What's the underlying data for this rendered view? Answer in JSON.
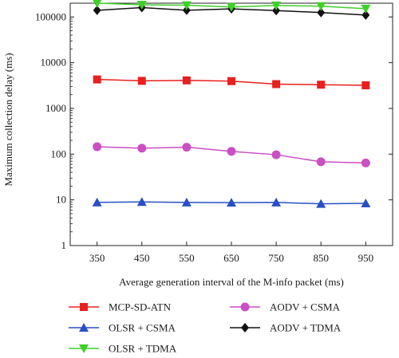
{
  "chart_data": {
    "type": "line",
    "title": "",
    "xlabel": "Average generation interval of the M-info packet (ms)",
    "ylabel": "Maximum collection delay (ms)",
    "yscale": "log",
    "ylim": [
      1,
      200000
    ],
    "xlim": [
      290,
      1010
    ],
    "x": [
      350,
      450,
      550,
      650,
      750,
      850,
      950
    ],
    "x_tick_labels": [
      "350",
      "450",
      "550",
      "650",
      "750",
      "850",
      "950"
    ],
    "y_tick_values": [
      1,
      10,
      100,
      1000,
      10000,
      100000
    ],
    "y_tick_labels": [
      "1",
      "10",
      "100",
      "1000",
      "10000",
      "100000"
    ],
    "grid": false,
    "legend_position": "bottom",
    "series": [
      {
        "name": "MCP-SD-ATN",
        "color": "#e8201e",
        "marker": "square",
        "values": [
          4300,
          4000,
          4100,
          3950,
          3400,
          3300,
          3200
        ]
      },
      {
        "name": "AODV + CSMA",
        "color": "#c94fc3",
        "marker": "circle",
        "values": [
          145,
          135,
          142,
          115,
          97,
          68,
          64
        ]
      },
      {
        "name": "OLSR + CSMA",
        "color": "#2a4fc4",
        "marker": "triangle-up",
        "values": [
          8.8,
          9.0,
          8.8,
          8.7,
          8.8,
          8.2,
          8.4
        ]
      },
      {
        "name": "AODV + TDMA",
        "color": "#111111",
        "marker": "diamond",
        "values": [
          140000,
          160000,
          140000,
          150000,
          138000,
          125000,
          110000
        ]
      },
      {
        "name": "OLSR + TDMA",
        "color": "#3fcf2a",
        "marker": "triangle-down",
        "values": [
          200000,
          185000,
          180000,
          165000,
          178000,
          172000,
          152000
        ]
      }
    ]
  }
}
